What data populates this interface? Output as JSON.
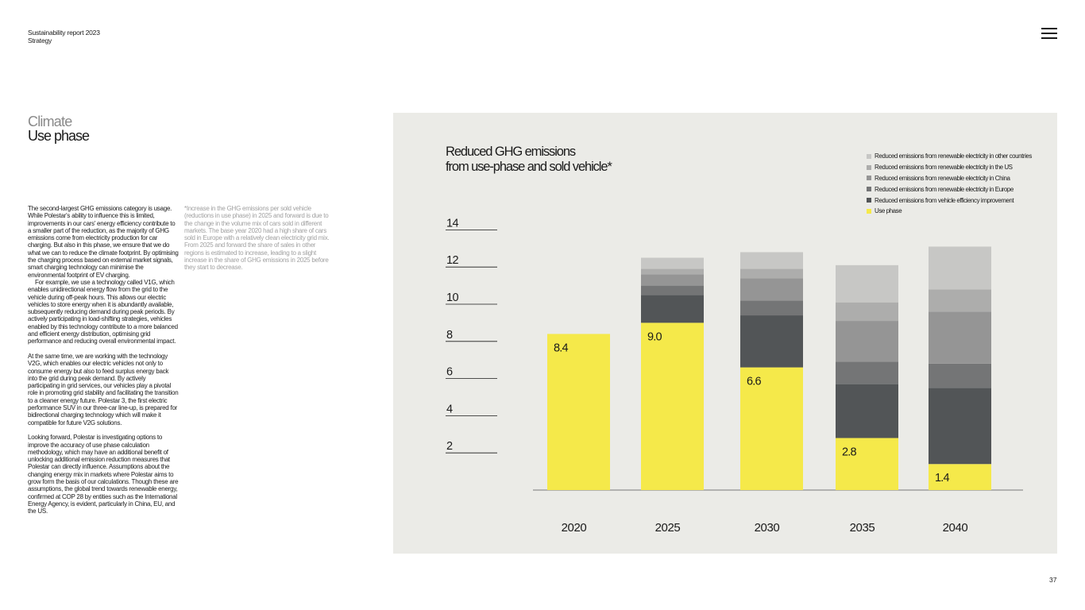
{
  "header": {
    "report": "Sustainability report 2023",
    "section": "Strategy"
  },
  "menu_icon": "hamburger-menu-icon",
  "section": {
    "category": "Climate",
    "title": "Use phase"
  },
  "body_paragraphs": [
    "The second-largest GHG emissions category is usage. While Polestar's ability to influence this is limited, improvements in our cars' energy efficiency contribute to a smaller part of the reduction, as the majority of GHG emissions come from electricity production for car charging. But also in this phase, we ensure that we do what we can to reduce the climate footprint. By optimising the charging process based on external market signals, smart charging technology can minimise the environmental footprint of EV charging.",
    "For example, we use a technology called V1G, which enables unidirectional energy flow from the grid to the vehicle during off-peak hours. This allows our electric vehicles to store energy when it is abundantly available, subsequently reducing demand during peak periods. By actively participating in load-shifting strategies, vehicles enabled by this technology contribute to a more balanced and efficient energy distribution, optimising grid performance and reducing overall environmental impact.",
    "At the same time, we are working with the technology V2G, which enables our electric vehicles not only to consume energy but also to feed surplus energy back into the grid during peak demand. By actively participating in grid services, our vehicles play a pivotal role in promoting grid stability and facilitating the transition to a cleaner energy future. Polestar 3, the first electric performance SUV in our three-car line-up, is prepared for bidirectional charging technology which will make it compatible for future V2G solutions.",
    "Looking forward, Polestar is investigating options to improve the accuracy of use phase calculation methodology, which may have an additional benefit of unlocking additional emission reduction measures that Polestar can directly influence. Assumptions about the changing energy mix in markets where Polestar aims to grow form the basis of our calculations. Though these are assumptions, the global trend towards renewable energy, confirmed at COP 28 by entities such as the International Energy Agency, is evident, particularly in China, EU, and the US."
  ],
  "footnote": "*Increase in the GHG emissions per sold vehicle (reductions in use phase) in 2025 and forward is due to the change in the volume mix of cars sold in different markets. The base year 2020 had a high share of cars sold in Europe with a relatively clean electricity grid mix. From 2025 and forward the share of sales in other regions is estimated to increase, leading to a slight increase in the share of GHG emissions in 2025 before they start to decrease.",
  "page_number": "37",
  "chart_data": {
    "type": "bar",
    "stacked": true,
    "title": "Reduced GHG emissions from use-phase and sold vehicle*",
    "title_lines": [
      "Reduced GHG emissions",
      "from use-phase and sold vehicle*"
    ],
    "categories": [
      "2020",
      "2025",
      "2030",
      "2035",
      "2040"
    ],
    "ylim": [
      0,
      14
    ],
    "yticks": [
      2,
      4,
      6,
      8,
      10,
      12,
      14
    ],
    "grid": false,
    "legend_position": "top-right",
    "data_labels": [
      "8.4",
      "9.0",
      "6.6",
      "2.8",
      "1.4"
    ],
    "series": [
      {
        "name": "Use phase",
        "color": "#f5e94a",
        "values": [
          8.4,
          9.0,
          6.6,
          2.8,
          1.4
        ]
      },
      {
        "name": "Reduced emissions from vehicle efficiency improvement",
        "color": "#525557",
        "values": [
          0,
          1.5,
          2.8,
          2.9,
          4.1
        ]
      },
      {
        "name": "Reduced emissions from renewable electricity in Europe",
        "color": "#747576",
        "values": [
          0,
          0.5,
          0.8,
          1.2,
          1.3
        ]
      },
      {
        "name": "Reduced emissions from renewable electricity in China",
        "color": "#959595",
        "values": [
          0,
          0.6,
          1.2,
          2.2,
          2.8
        ]
      },
      {
        "name": "Reduced emissions from renewable electricity in the US",
        "color": "#adadac",
        "values": [
          0,
          0.3,
          0.5,
          1.0,
          1.2
        ]
      },
      {
        "name": "Reduced emissions from renewable electricity in other countries",
        "color": "#c7c7c5",
        "values": [
          0,
          0.6,
          0.9,
          2.0,
          2.3
        ]
      }
    ],
    "legend_order": [
      5,
      4,
      3,
      2,
      1,
      0
    ]
  }
}
